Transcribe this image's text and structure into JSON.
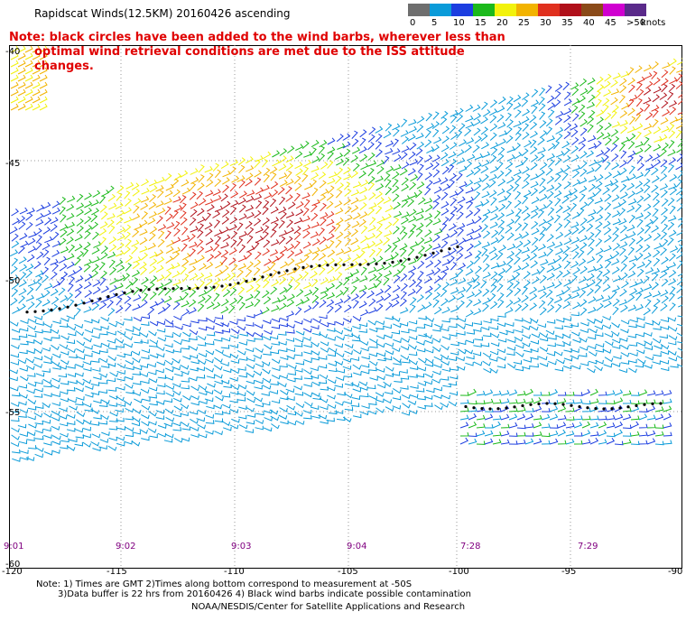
{
  "title": "Rapidscat Winds(12.5KM) 20160426 ascending",
  "note": {
    "line1": "Note: black circles have been added to the wind barbs, wherever less than",
    "line2": "optimal wind retrieval conditions are met due to the ISS attitude changes."
  },
  "legend": {
    "unit": "knots",
    "bins": [
      {
        "label": "0",
        "color": "#6e6e6e"
      },
      {
        "label": "5",
        "color": "#0a9bd9"
      },
      {
        "label": "10",
        "color": "#1c3ee0"
      },
      {
        "label": "15",
        "color": "#1bb91b"
      },
      {
        "label": "20",
        "color": "#f2f20c"
      },
      {
        "label": "25",
        "color": "#f2b300"
      },
      {
        "label": "30",
        "color": "#e0301e"
      },
      {
        "label": "35",
        "color": "#b0101a"
      },
      {
        "label": "40",
        "color": "#8a4a18"
      },
      {
        "label": "45",
        "color": "#d000d0"
      },
      {
        "label": ">50",
        "color": "#5a2a8a"
      }
    ]
  },
  "map": {
    "lat_labels": [
      "-40",
      "-45",
      "-50",
      "-55",
      "-60"
    ],
    "lon_labels": [
      "-120",
      "-115",
      "-110",
      "-105",
      "-100",
      "-95",
      "-90"
    ],
    "time_labels": [
      "9:01",
      "9:02",
      "9:03",
      "9:04",
      "7:28",
      "7:29"
    ]
  },
  "footer": {
    "line1": "Note: 1) Times are GMT 2)Times along bottom correspond to measurement at -50S",
    "line2": "3)Data buffer is 22 hrs from 20160426 4) Black wind barbs indicate possible contamination",
    "credit": "NOAA/NESDIS/Center for Satellite Applications and Research"
  }
}
